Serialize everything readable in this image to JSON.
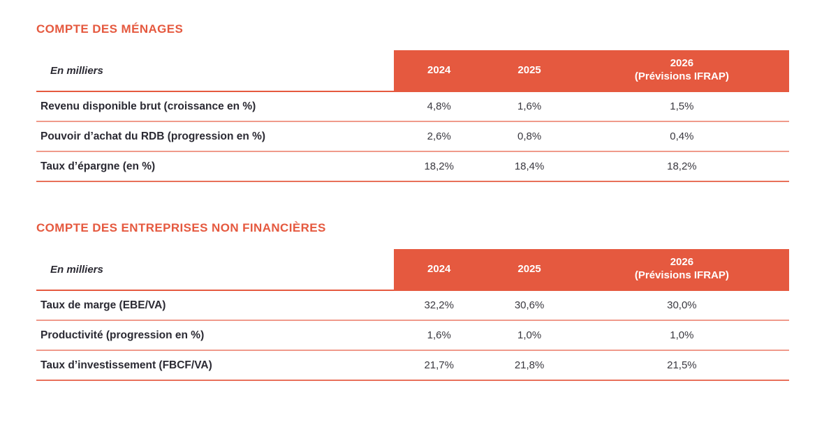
{
  "page": {
    "background": "#ffffff"
  },
  "colors": {
    "brand_red": "#e5593f",
    "separator": "#f09a8b",
    "bottom_line": "#e8705a",
    "text_dark": "#2b2a33",
    "value_text": "#3a3940",
    "header_text": "#ffffff"
  },
  "sections": [
    {
      "title": "COMPTE DES MÉNAGES",
      "table": {
        "unit_header": "En milliers",
        "columns": [
          {
            "label": "2024",
            "sublabel": ""
          },
          {
            "label": "2025",
            "sublabel": ""
          },
          {
            "label": "2026",
            "sublabel": "(Prévisions IFRAP)"
          }
        ],
        "rows": [
          {
            "label": "Revenu disponible brut (croissance en %)",
            "values": [
              "4,8%",
              "1,6%",
              "1,5%"
            ]
          },
          {
            "label": "Pouvoir d’achat du RDB (progression en %)",
            "values": [
              "2,6%",
              "0,8%",
              "0,4%"
            ]
          },
          {
            "label": "Taux d’épargne (en %)",
            "values": [
              "18,2%",
              "18,4%",
              "18,2%"
            ]
          }
        ]
      }
    },
    {
      "title": "COMPTE DES ENTREPRISES NON FINANCIÈRES",
      "table": {
        "unit_header": "En milliers",
        "columns": [
          {
            "label": "2024",
            "sublabel": ""
          },
          {
            "label": "2025",
            "sublabel": ""
          },
          {
            "label": "2026",
            "sublabel": "(Prévisions IFRAP)"
          }
        ],
        "rows": [
          {
            "label": "Taux de marge (EBE/VA)",
            "values": [
              "32,2%",
              "30,6%",
              "30,0%"
            ]
          },
          {
            "label": "Productivité (progression en %)",
            "values": [
              "1,6%",
              "1,0%",
              "1,0%"
            ]
          },
          {
            "label": "Taux d’investissement (FBCF/VA)",
            "values": [
              "21,7%",
              "21,8%",
              "21,5%"
            ]
          }
        ]
      }
    }
  ],
  "chart_data": [
    {
      "type": "table",
      "title": "COMPTE DES MÉNAGES",
      "categories": [
        "2024",
        "2025",
        "2026 (Prévisions IFRAP)"
      ],
      "series": [
        {
          "name": "Revenu disponible brut (croissance en %)",
          "values": [
            4.8,
            1.6,
            1.5
          ]
        },
        {
          "name": "Pouvoir d’achat du RDB (progression en %)",
          "values": [
            2.6,
            0.8,
            0.4
          ]
        },
        {
          "name": "Taux d’épargne (en %)",
          "values": [
            18.2,
            18.4,
            18.2
          ]
        }
      ]
    },
    {
      "type": "table",
      "title": "COMPTE DES ENTREPRISES NON FINANCIÈRES",
      "categories": [
        "2024",
        "2025",
        "2026 (Prévisions IFRAP)"
      ],
      "series": [
        {
          "name": "Taux de marge (EBE/VA)",
          "values": [
            32.2,
            30.6,
            30.0
          ]
        },
        {
          "name": "Productivité (progression en %)",
          "values": [
            1.6,
            1.0,
            1.0
          ]
        },
        {
          "name": "Taux d’investissement (FBCF/VA)",
          "values": [
            21.7,
            21.8,
            21.5
          ]
        }
      ]
    }
  ]
}
